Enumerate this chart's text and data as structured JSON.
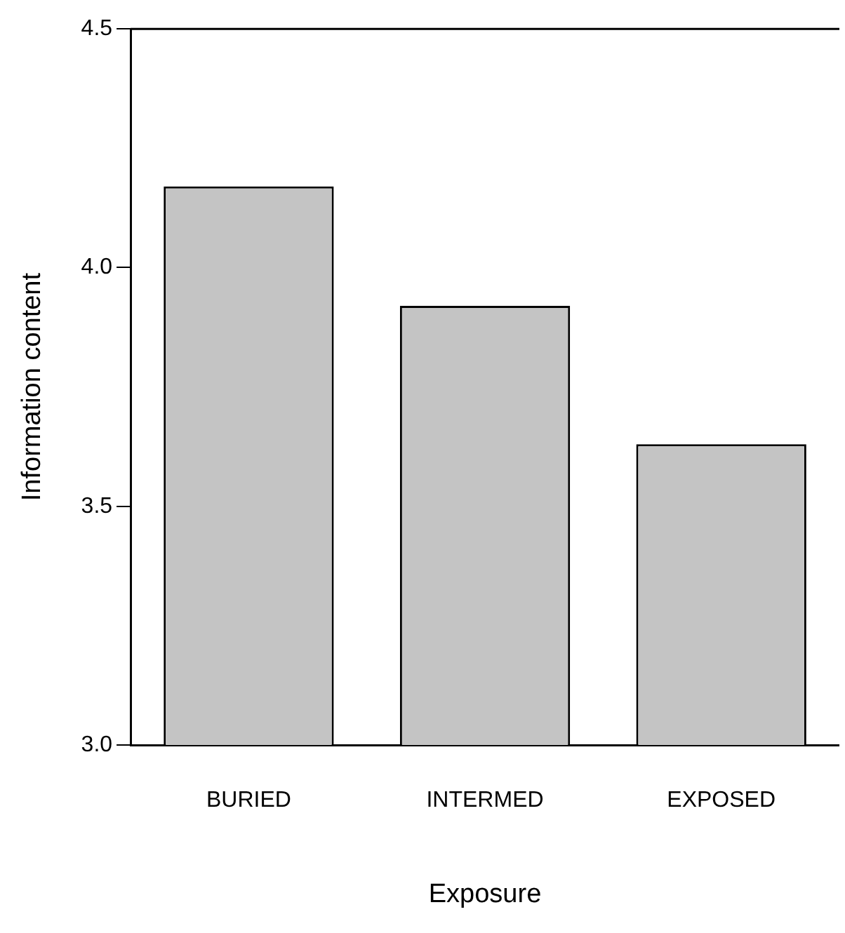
{
  "chart_data": {
    "type": "bar",
    "xlabel": "Exposure",
    "ylabel": "Information content",
    "categories": [
      "BURIED",
      "INTERMED",
      "EXPOSED"
    ],
    "values": [
      4.17,
      3.92,
      3.63
    ],
    "color": "#c4c4c4",
    "ylim": [
      3.0,
      4.5
    ],
    "yticks": [
      {
        "value": 3.0,
        "label": "3.0"
      },
      {
        "value": 3.5,
        "label": "3.5"
      },
      {
        "value": 4.0,
        "label": "4.0"
      },
      {
        "value": 4.5,
        "label": "4.5"
      }
    ],
    "grid": false,
    "legend": false
  }
}
